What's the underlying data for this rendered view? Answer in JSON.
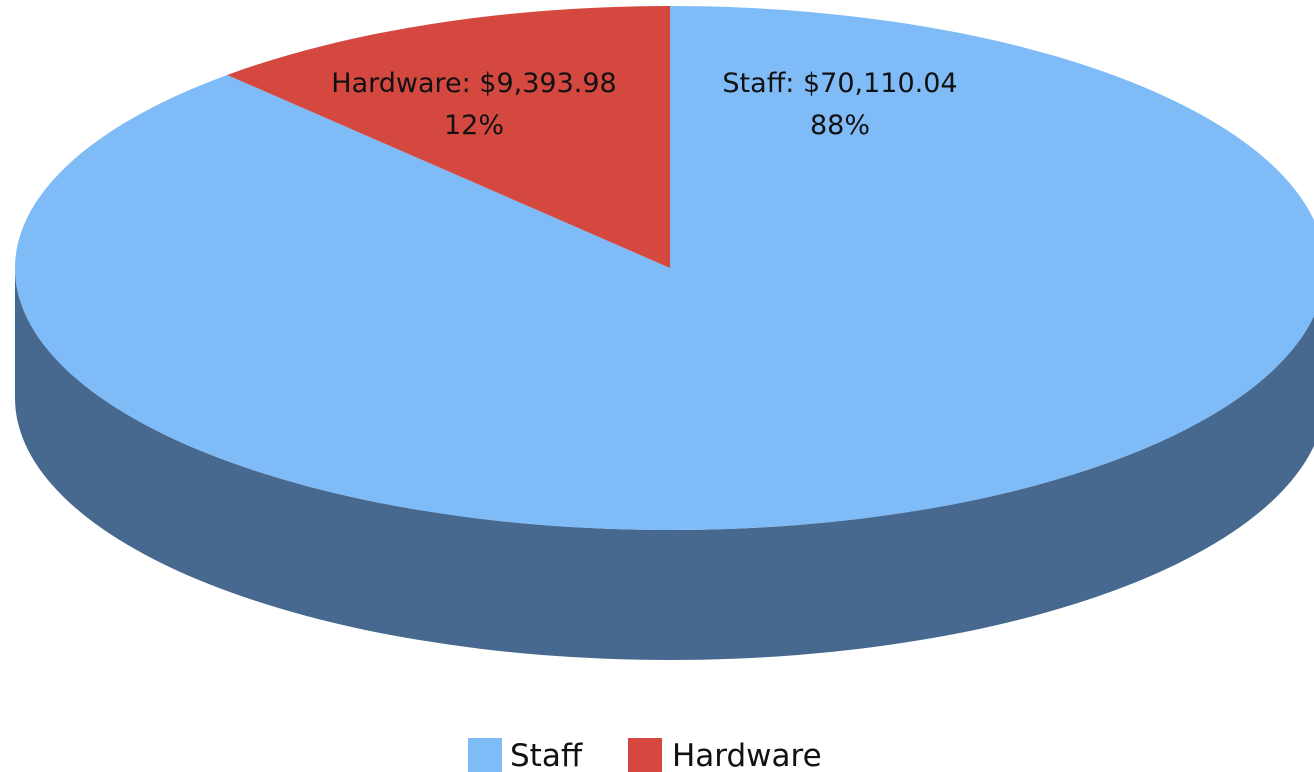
{
  "chart_data": {
    "type": "pie",
    "style": "3d",
    "legend_position": "bottom",
    "slices": [
      {
        "name": "Staff",
        "value": 70110.04,
        "value_label": "$70,110.04",
        "percent_label": "88%",
        "color": "#7fbbf6",
        "side_color": "#476990"
      },
      {
        "name": "Hardware",
        "value": 9393.98,
        "value_label": "$9,393.98",
        "percent_label": "12%",
        "color": "#d44840",
        "side_color": "#8e2d28"
      }
    ]
  }
}
